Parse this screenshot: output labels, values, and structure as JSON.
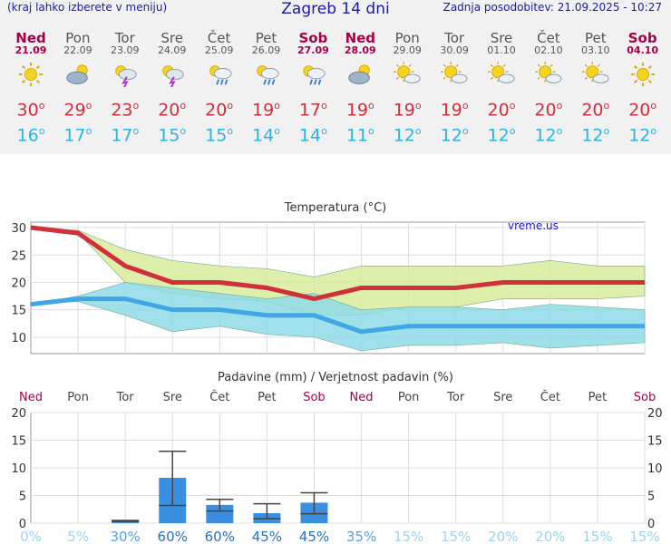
{
  "header": {
    "left_note": "(kraj lahko izberete v meniju)",
    "title": "Zagreb 14 dni",
    "updated": "Zadnja posodobitev: 21.09.2025 - 10:27"
  },
  "days": [
    {
      "name": "Ned",
      "date": "21.09",
      "weekend": true,
      "icon": "sun-icon",
      "tmax": "30",
      "tmin": "16"
    },
    {
      "name": "Pon",
      "date": "22.09",
      "weekend": false,
      "icon": "cloud-sun-icon",
      "tmax": "29",
      "tmin": "17"
    },
    {
      "name": "Tor",
      "date": "23.09",
      "weekend": false,
      "icon": "sun-storm-icon",
      "tmax": "23",
      "tmin": "17"
    },
    {
      "name": "Sre",
      "date": "24.09",
      "weekend": false,
      "icon": "sun-storm-icon",
      "tmax": "20",
      "tmin": "15"
    },
    {
      "name": "Čet",
      "date": "25.09",
      "weekend": false,
      "icon": "sun-rain-icon",
      "tmax": "20",
      "tmin": "15"
    },
    {
      "name": "Pet",
      "date": "26.09",
      "weekend": false,
      "icon": "sun-rain-icon",
      "tmax": "19",
      "tmin": "14"
    },
    {
      "name": "Sob",
      "date": "27.09",
      "weekend": true,
      "icon": "sun-rain-icon",
      "tmax": "17",
      "tmin": "14"
    },
    {
      "name": "Ned",
      "date": "28.09",
      "weekend": true,
      "icon": "cloud-sun-icon",
      "tmax": "19",
      "tmin": "11"
    },
    {
      "name": "Pon",
      "date": "29.09",
      "weekend": false,
      "icon": "sun-cloud-icon",
      "tmax": "19",
      "tmin": "12"
    },
    {
      "name": "Tor",
      "date": "30.09",
      "weekend": false,
      "icon": "sun-cloud-icon",
      "tmax": "19",
      "tmin": "12"
    },
    {
      "name": "Sre",
      "date": "01.10",
      "weekend": false,
      "icon": "sun-cloud-icon",
      "tmax": "20",
      "tmin": "12"
    },
    {
      "name": "Čet",
      "date": "02.10",
      "weekend": false,
      "icon": "sun-cloud-icon",
      "tmax": "20",
      "tmin": "12"
    },
    {
      "name": "Pet",
      "date": "03.10",
      "weekend": false,
      "icon": "sun-cloud-icon",
      "tmax": "20",
      "tmin": "12"
    },
    {
      "name": "Sob",
      "date": "04.10",
      "weekend": true,
      "icon": "sun-icon",
      "tmax": "20",
      "tmin": "12"
    }
  ],
  "degree_symbol": "o",
  "colors": {
    "max_temp": "#d0303c",
    "min_temp": "#28b4e6",
    "weekend": "#a6004a",
    "max_band": "#d8ec9c",
    "min_band": "#8edbe8",
    "overlap_band": "#8ccf8c",
    "precip_bar": "#3a8fe0"
  },
  "chart_data": [
    {
      "type": "line",
      "title": "Temperatura (°C)",
      "watermark": "vreme.us",
      "x": [
        0,
        1,
        2,
        3,
        4,
        5,
        6,
        7,
        8,
        9,
        10,
        11,
        12,
        13
      ],
      "ylim": [
        7,
        31
      ],
      "yticks": [
        10,
        15,
        20,
        25,
        30
      ],
      "grid": true,
      "series": [
        {
          "name": "max",
          "values": [
            30,
            29,
            23,
            20,
            20,
            19,
            17,
            19,
            19,
            19,
            20,
            20,
            20,
            20
          ]
        },
        {
          "name": "min",
          "values": [
            16,
            17,
            17,
            15,
            15,
            14,
            14,
            11,
            12,
            12,
            12,
            12,
            12,
            12
          ]
        },
        {
          "name": "max_band_upper",
          "values": [
            30,
            29.5,
            26,
            24,
            23,
            22.5,
            21,
            23,
            23,
            23,
            23,
            24,
            23,
            23
          ]
        },
        {
          "name": "max_band_lower",
          "values": [
            30,
            29,
            20,
            18,
            17,
            16.5,
            14,
            14,
            15.5,
            15.5,
            17,
            17,
            17,
            17.5
          ]
        },
        {
          "name": "min_band_upper",
          "values": [
            16,
            17.5,
            20,
            19,
            18,
            17,
            18,
            15,
            15.5,
            15.5,
            15,
            16,
            15.5,
            15
          ]
        },
        {
          "name": "min_band_lower",
          "values": [
            16,
            16.5,
            14,
            11,
            12,
            10.5,
            10,
            7.5,
            8.5,
            8.5,
            9,
            8,
            8.5,
            9
          ]
        }
      ]
    },
    {
      "type": "bar",
      "title": "Padavine (mm) / Verjetnost padavin (%)",
      "categories": [
        "Ned",
        "Pon",
        "Tor",
        "Sre",
        "Čet",
        "Pet",
        "Sob",
        "Ned",
        "Pon",
        "Tor",
        "Sre",
        "Čet",
        "Pet",
        "Sob"
      ],
      "values": [
        0,
        0,
        0.5,
        8.2,
        3.3,
        1.8,
        3.7,
        0,
        0,
        0,
        0,
        0,
        0,
        0
      ],
      "error_high": [
        0,
        0,
        0.5,
        13,
        4.3,
        3.5,
        5.5,
        0,
        0,
        0,
        0,
        0,
        0,
        0
      ],
      "error_low": [
        0,
        0,
        0.3,
        3.2,
        2.2,
        0.8,
        1.7,
        0,
        0,
        0,
        0,
        0,
        0,
        0
      ],
      "probability": [
        "0%",
        "5%",
        "30%",
        "60%",
        "60%",
        "45%",
        "45%",
        "35%",
        "15%",
        "15%",
        "20%",
        "20%",
        "15%",
        "15%"
      ],
      "ylim": [
        0,
        20
      ],
      "yticks": [
        0,
        5,
        10,
        15,
        20
      ],
      "grid": true
    }
  ]
}
